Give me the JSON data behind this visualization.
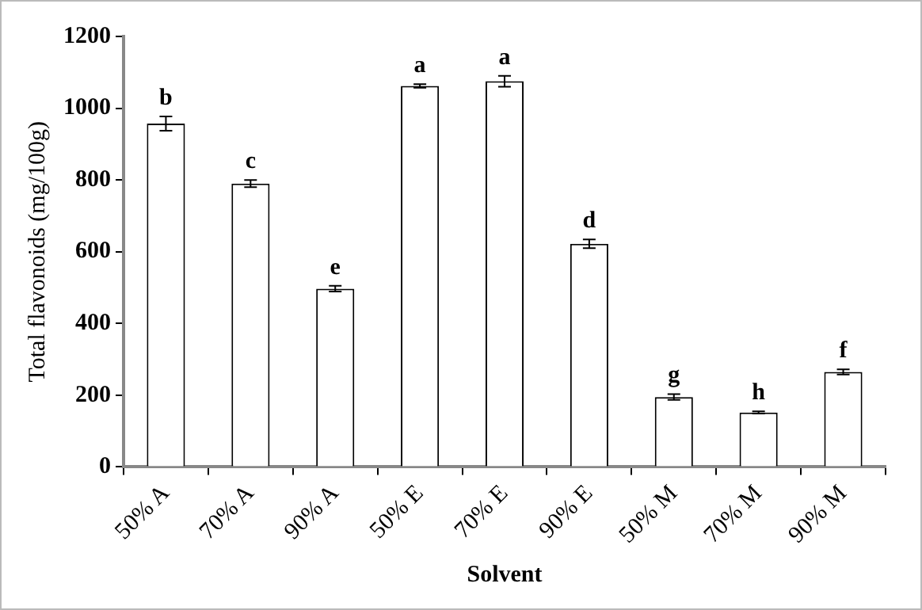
{
  "chart_data": {
    "type": "bar",
    "xlabel": "Solvent",
    "ylabel": "Total flavonoids (mg/100g)",
    "categories": [
      "50% A",
      "70% A",
      "90% A",
      "50% E",
      "70% E",
      "90% E",
      "50% M",
      "70% M",
      "90% M"
    ],
    "values": [
      957,
      790,
      497,
      1062,
      1075,
      622,
      195,
      152,
      265
    ],
    "errors": [
      20,
      10,
      8,
      5,
      15,
      12,
      8,
      3,
      7
    ],
    "color": "#ffffff",
    "ylim": [
      0,
      1200
    ],
    "yticks": [
      0,
      200,
      400,
      600,
      800,
      1000,
      1200
    ],
    "grid": false,
    "legend": false,
    "annotations": [
      {
        "text": "b",
        "x": "50% A",
        "y": 977
      },
      {
        "text": "c",
        "x": "70% A",
        "y": 800
      },
      {
        "text": "e",
        "x": "90% A",
        "y": 505
      },
      {
        "text": "a",
        "x": "50% E",
        "y": 1067
      },
      {
        "text": "a",
        "x": "70% E",
        "y": 1090
      },
      {
        "text": "d",
        "x": "90% E",
        "y": 634
      },
      {
        "text": "g",
        "x": "50% M",
        "y": 203
      },
      {
        "text": "h",
        "x": "70% M",
        "y": 155
      },
      {
        "text": "f",
        "x": "90% M",
        "y": 272
      }
    ]
  }
}
